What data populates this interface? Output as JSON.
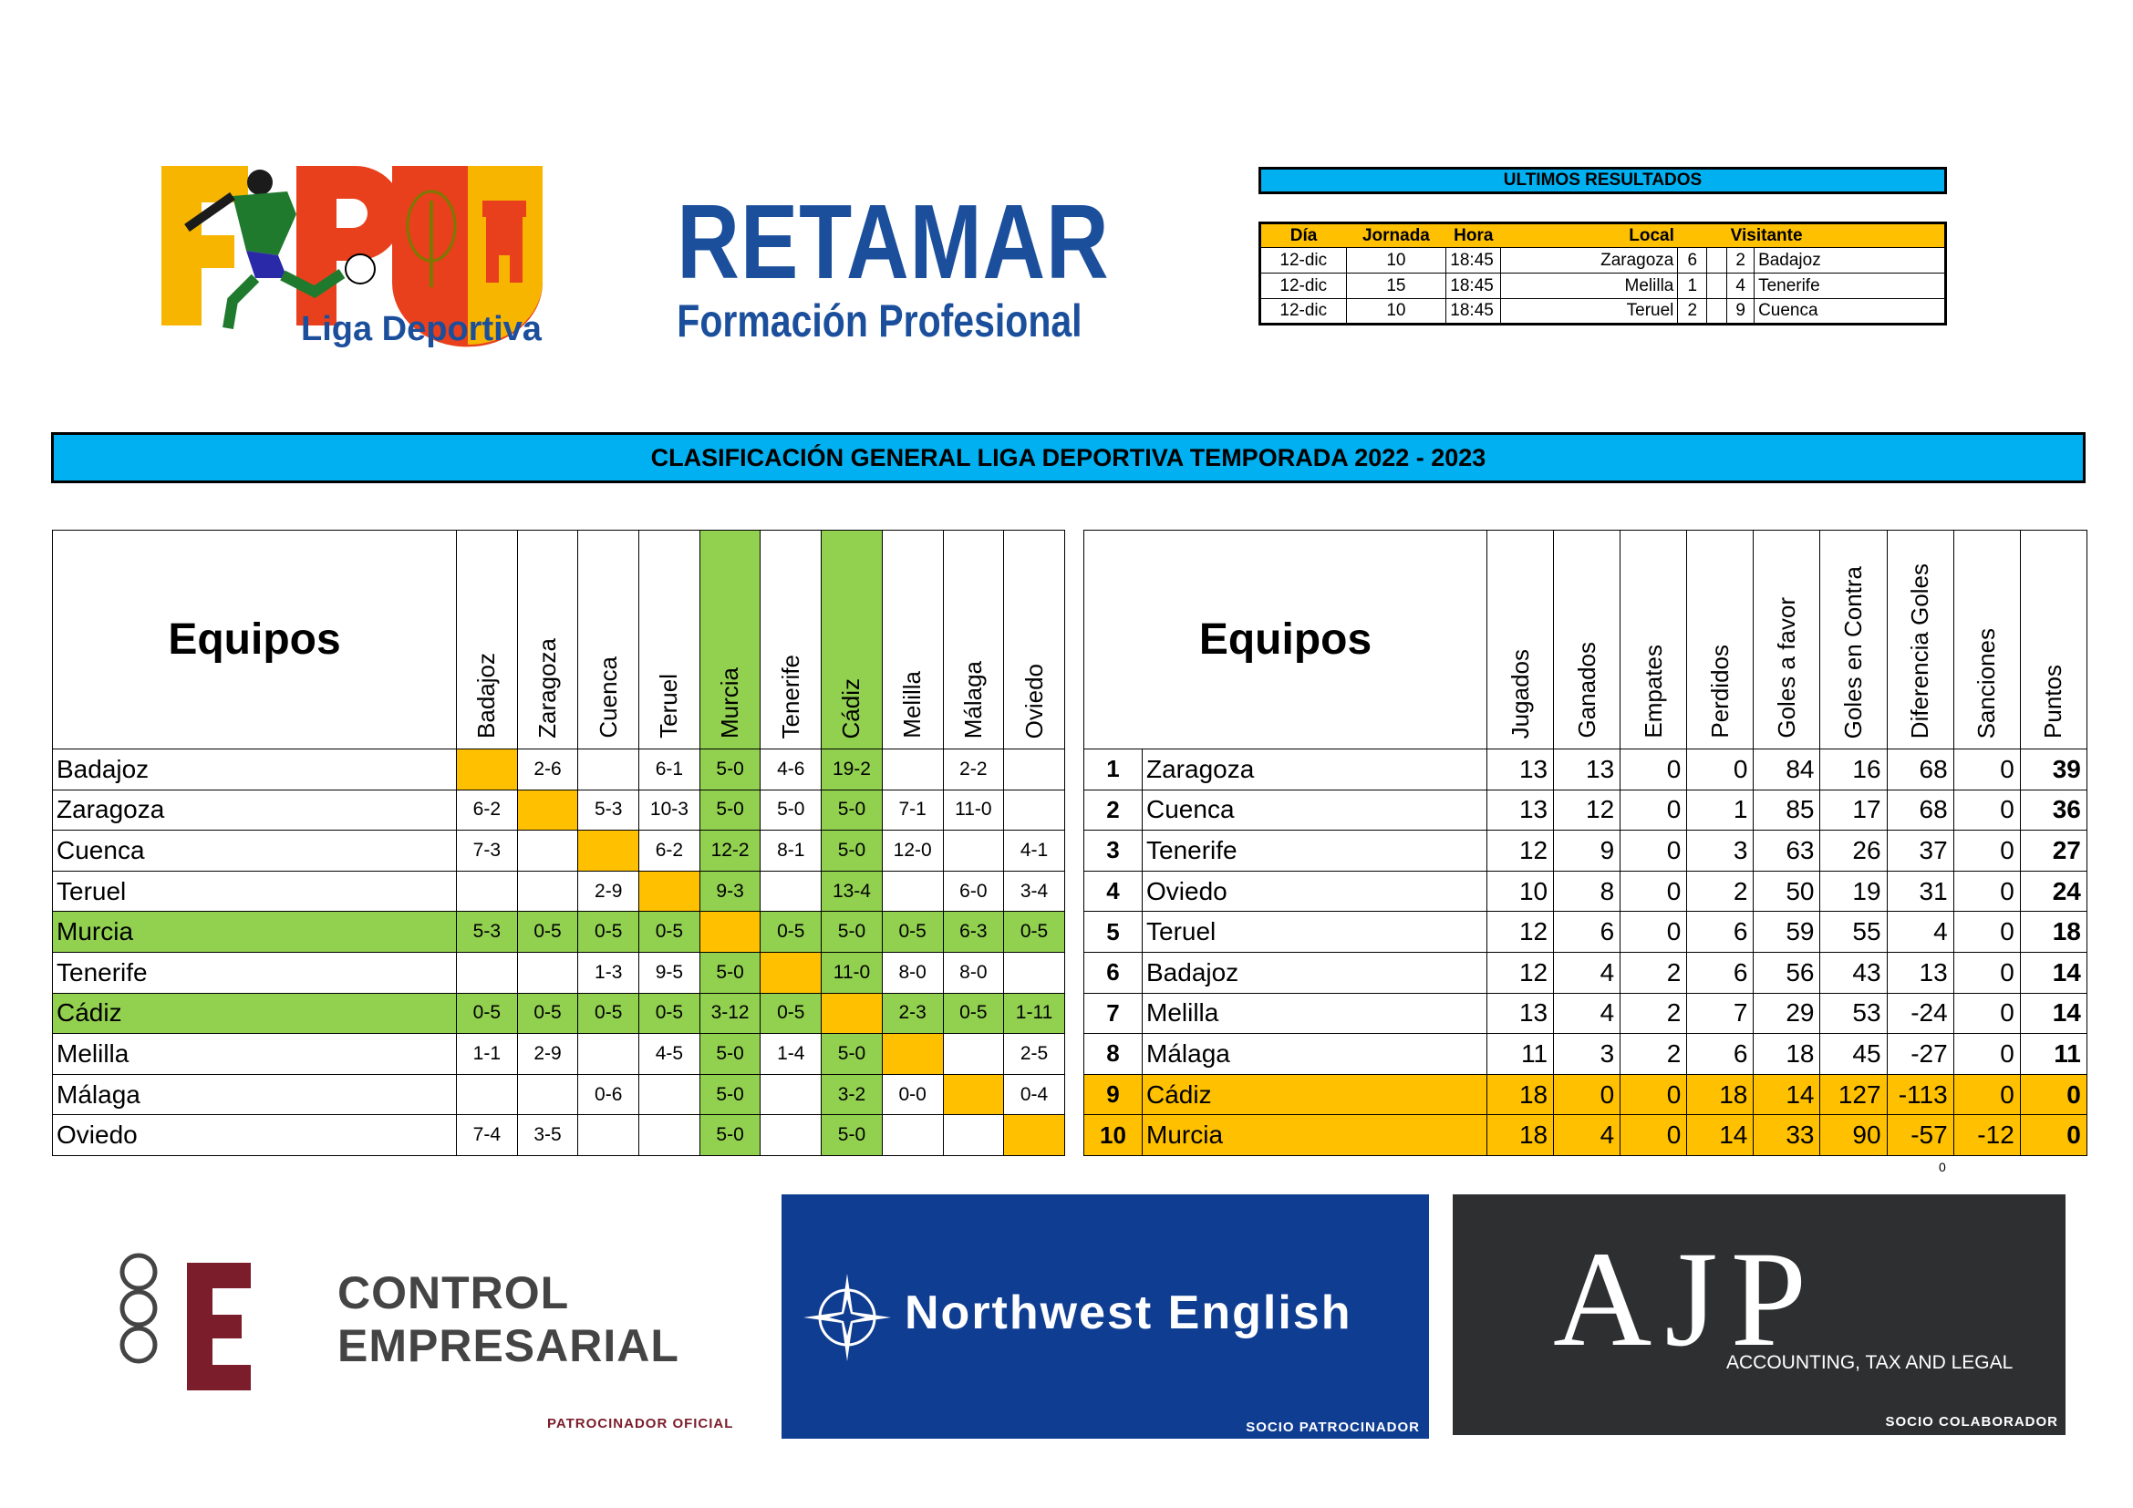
{
  "logos": {
    "fpu_text": "Liga Deportiva",
    "retamar_title": "RETAMAR",
    "retamar_subtitle": "Formación Profesional"
  },
  "ultimos": {
    "title": "ULTIMOS RESULTADOS",
    "headers": {
      "dia": "Día",
      "jornada": "Jornada",
      "hora": "Hora",
      "local": "Local",
      "visitante": "Visitante"
    },
    "rows": [
      {
        "dia": "12-dic",
        "jornada": "10",
        "hora": "18:45",
        "local": "Zaragoza",
        "gl": "6",
        "gv": "2",
        "visitante": "Badajoz"
      },
      {
        "dia": "12-dic",
        "jornada": "15",
        "hora": "18:45",
        "local": "Melilla",
        "gl": "1",
        "gv": "4",
        "visitante": "Tenerife"
      },
      {
        "dia": "12-dic",
        "jornada": "10",
        "hora": "18:45",
        "local": "Teruel",
        "gl": "2",
        "gv": "9",
        "visitante": "Cuenca"
      }
    ]
  },
  "banner": "CLASIFICACIÓN GENERAL LIGA DEPORTIVA TEMPORADA 2022 - 2023",
  "matrix": {
    "header": "Equipos",
    "columns": [
      "Badajoz",
      "Zaragoza",
      "Cuenca",
      "Teruel",
      "Murcia",
      "Tenerife",
      "Cádiz",
      "Melilla",
      "Málaga",
      "Oviedo"
    ],
    "rows": [
      {
        "team": "Badajoz",
        "cells": [
          "",
          "2-6",
          "",
          "6-1",
          "5-0",
          "4-6",
          "19-2",
          "",
          "2-2",
          ""
        ]
      },
      {
        "team": "Zaragoza",
        "cells": [
          "6-2",
          "",
          "5-3",
          "10-3",
          "5-0",
          "5-0",
          "5-0",
          "7-1",
          "11-0",
          ""
        ]
      },
      {
        "team": "Cuenca",
        "cells": [
          "7-3",
          "",
          "",
          "6-2",
          "12-2",
          "8-1",
          "5-0",
          "12-0",
          "",
          "4-1"
        ]
      },
      {
        "team": "Teruel",
        "cells": [
          "",
          "",
          "2-9",
          "",
          "9-3",
          "",
          "13-4",
          "",
          "6-0",
          "3-4"
        ]
      },
      {
        "team": "Murcia",
        "cells": [
          "5-3",
          "0-5",
          "0-5",
          "0-5",
          "",
          "0-5",
          "5-0",
          "0-5",
          "6-3",
          "0-5"
        ]
      },
      {
        "team": "Tenerife",
        "cells": [
          "",
          "",
          "1-3",
          "9-5",
          "5-0",
          "",
          "11-0",
          "8-0",
          "8-0",
          ""
        ]
      },
      {
        "team": "Cádiz",
        "cells": [
          "0-5",
          "0-5",
          "0-5",
          "0-5",
          "3-12",
          "0-5",
          "",
          "2-3",
          "0-5",
          "1-11"
        ]
      },
      {
        "team": "Melilla",
        "cells": [
          "1-1",
          "2-9",
          "",
          "4-5",
          "5-0",
          "1-4",
          "5-0",
          "",
          "",
          "2-5"
        ]
      },
      {
        "team": "Málaga",
        "cells": [
          "",
          "",
          "0-6",
          "",
          "5-0",
          "",
          "3-2",
          "0-0",
          "",
          "0-4"
        ]
      },
      {
        "team": "Oviedo",
        "cells": [
          "7-4",
          "3-5",
          "",
          "",
          "5-0",
          "",
          "5-0",
          "",
          "",
          ""
        ]
      }
    ]
  },
  "standings": {
    "header": "Equipos",
    "columns": [
      "Jugados",
      "Ganados",
      "Empates",
      "Perdidos",
      "Goles a favor",
      "Goles en Contra",
      "Diferencia Goles",
      "Sanciones",
      "Puntos"
    ],
    "rows": [
      {
        "pos": "1",
        "team": "Zaragoza",
        "vals": [
          "13",
          "13",
          "0",
          "0",
          "84",
          "16",
          "68",
          "0",
          "39"
        ]
      },
      {
        "pos": "2",
        "team": "Cuenca",
        "vals": [
          "13",
          "12",
          "0",
          "1",
          "85",
          "17",
          "68",
          "0",
          "36"
        ]
      },
      {
        "pos": "3",
        "team": "Tenerife",
        "vals": [
          "12",
          "9",
          "0",
          "3",
          "63",
          "26",
          "37",
          "0",
          "27"
        ]
      },
      {
        "pos": "4",
        "team": "Oviedo",
        "vals": [
          "10",
          "8",
          "0",
          "2",
          "50",
          "19",
          "31",
          "0",
          "24"
        ]
      },
      {
        "pos": "5",
        "team": "Teruel",
        "vals": [
          "12",
          "6",
          "0",
          "6",
          "59",
          "55",
          "4",
          "0",
          "18"
        ]
      },
      {
        "pos": "6",
        "team": "Badajoz",
        "vals": [
          "12",
          "4",
          "2",
          "6",
          "56",
          "43",
          "13",
          "0",
          "14"
        ]
      },
      {
        "pos": "7",
        "team": "Melilla",
        "vals": [
          "13",
          "4",
          "2",
          "7",
          "29",
          "53",
          "-24",
          "0",
          "14"
        ]
      },
      {
        "pos": "8",
        "team": "Málaga",
        "vals": [
          "11",
          "3",
          "2",
          "6",
          "18",
          "45",
          "-27",
          "0",
          "11"
        ]
      },
      {
        "pos": "9",
        "team": "Cádiz",
        "vals": [
          "18",
          "0",
          "0",
          "18",
          "14",
          "127",
          "-113",
          "0",
          "0"
        ]
      },
      {
        "pos": "10",
        "team": "Murcia",
        "vals": [
          "18",
          "4",
          "0",
          "14",
          "33",
          "90",
          "-57",
          "-12",
          "0"
        ]
      }
    ],
    "footnote": "0"
  },
  "sponsors": {
    "control": {
      "line1": "CONTROL",
      "line2": "EMPRESARIAL",
      "label": "PATROCINADOR OFICIAL"
    },
    "northwest": {
      "name": "Northwest English",
      "label": "SOCIO PATROCINADOR"
    },
    "ajp": {
      "name": "AJP",
      "tagline": "ACCOUNTING, TAX AND LEGAL",
      "label": "SOCIO COLABORADOR"
    }
  },
  "colors": {
    "cyan": "#00b0f0",
    "orange": "#ffc000",
    "green": "#92d050",
    "retamar_blue": "#1b4f9c",
    "northwest_blue": "#0f3d91",
    "control_red": "#7b1d2b",
    "ajp_dark": "#2d2f31"
  }
}
